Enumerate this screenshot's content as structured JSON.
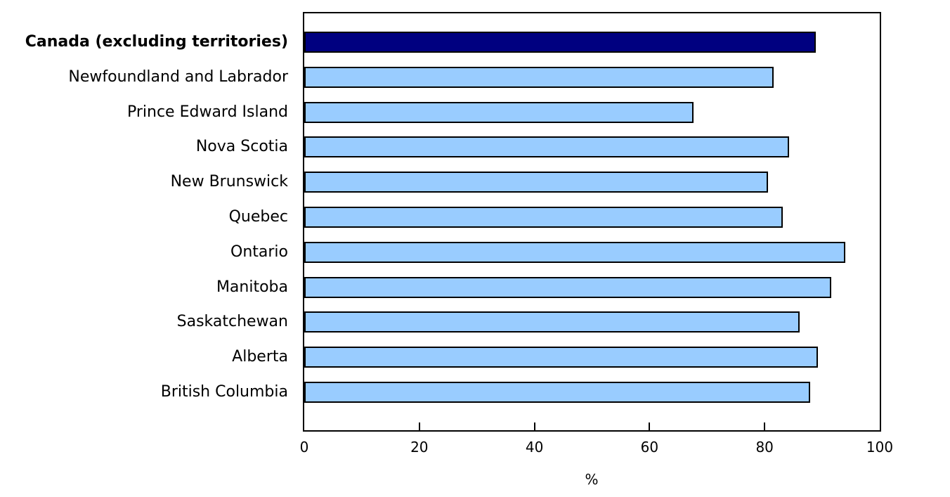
{
  "chart_data": {
    "type": "bar",
    "orientation": "horizontal",
    "categories": [
      "Canada (excluding territories)",
      "Newfoundland and Labrador",
      "Prince Edward Island",
      "Nova Scotia",
      "New Brunswick",
      "Quebec",
      "Ontario",
      "Manitoba",
      "Saskatchewan",
      "Alberta",
      "British Columbia"
    ],
    "values": [
      88.9,
      81.6,
      67.7,
      84.3,
      80.6,
      83.1,
      94.0,
      91.6,
      86.1,
      89.2,
      87.9
    ],
    "highlight_index": 0,
    "highlight_category": "Canada (excluding territories)",
    "xlabel": "%",
    "xlim": [
      0,
      100
    ],
    "xticks": [
      0,
      20,
      40,
      60,
      80,
      100
    ],
    "grid": false,
    "legend": "none",
    "colors": {
      "highlight_bar": "#000080",
      "bar": "#99CCFF",
      "bar_border": "#000000",
      "axis": "#000000",
      "text": "#000000",
      "background": "#FFFFFF"
    }
  }
}
